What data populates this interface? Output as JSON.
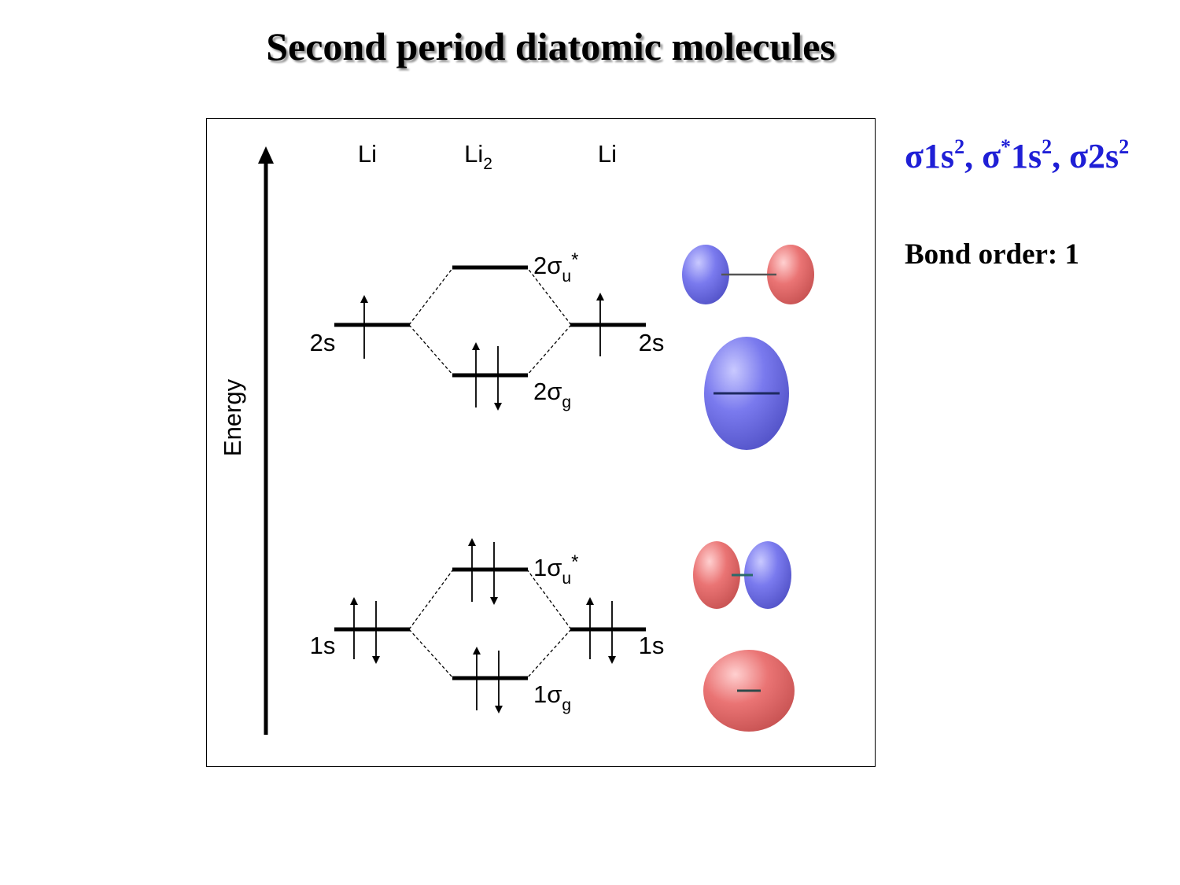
{
  "title": "Second period diatomic molecules",
  "diagram": {
    "axis_label": "Energy",
    "columns": {
      "left_atom": "Li",
      "molecule": "Li",
      "molecule_sub": "2",
      "right_atom": "Li"
    },
    "atomic_orbitals": {
      "left_2s": "2s",
      "right_2s": "2s",
      "left_1s": "1s",
      "right_1s": "1s"
    },
    "molecular_orbitals": {
      "mo_2su": {
        "num": "2",
        "sym": "σ",
        "sub": "u",
        "star": "*"
      },
      "mo_2sg": {
        "num": "2",
        "sym": "σ",
        "sub": "g",
        "star": ""
      },
      "mo_1su": {
        "num": "1",
        "sym": "σ",
        "sub": "u",
        "star": "*"
      },
      "mo_1sg": {
        "num": "1",
        "sym": "σ",
        "sub": "g",
        "star": ""
      }
    },
    "colors": {
      "positive_lobe": "#e46a6a",
      "negative_lobe": "#6a6ae6",
      "line": "#000000"
    }
  },
  "configuration": {
    "term1": "σ1s",
    "term1_exp": "2",
    "sep1": ", ",
    "term2_a": "σ",
    "term2_star": "*",
    "term2_b": "1s",
    "term2_exp": "2",
    "sep2": ", ",
    "term3": "σ2s",
    "term3_exp": "2"
  },
  "bond_order": "Bond order: 1"
}
